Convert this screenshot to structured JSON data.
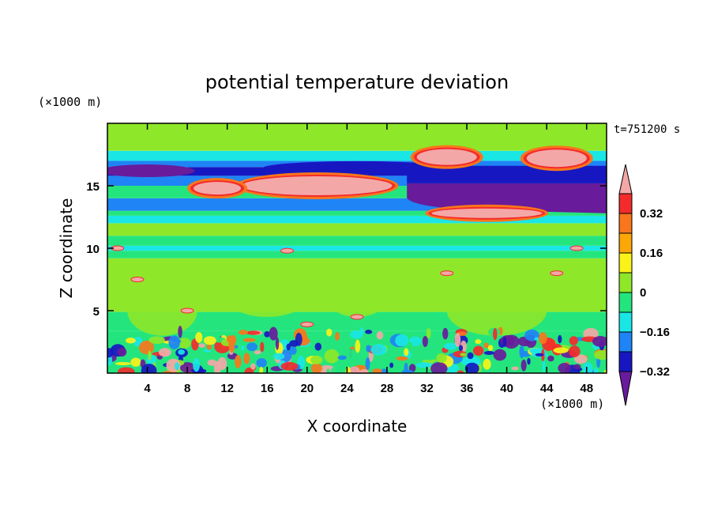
{
  "chart_data": {
    "type": "heatmap",
    "title": "potential temperature deviation",
    "xlabel": "X coordinate",
    "ylabel": "Z coordinate",
    "x_unit": "(×1000 m)",
    "y_unit": "(×1000 m)",
    "time_label": "t=751200 s",
    "xlim": [
      0,
      50
    ],
    "ylim": [
      0,
      20
    ],
    "x_ticks": [
      4,
      8,
      12,
      16,
      20,
      24,
      28,
      32,
      36,
      40,
      44,
      48
    ],
    "y_ticks": [
      5,
      10,
      15
    ],
    "colorbar": {
      "labels": [
        {
          "text": "0.32",
          "value": 0.32
        },
        {
          "text": "0.16",
          "value": 0.16
        },
        {
          "text": "0",
          "value": 0
        },
        {
          "text": "−0.16",
          "value": -0.16
        },
        {
          "text": "−0.32",
          "value": -0.32
        }
      ],
      "levels": [
        {
          "range": ">0.4",
          "color": "#f4a7a7"
        },
        {
          "range": "0.32 to 0.4",
          "color": "#f42b2b"
        },
        {
          "range": "0.24 to 0.32",
          "color": "#f9761c"
        },
        {
          "range": "0.16 to 0.24",
          "color": "#fba707"
        },
        {
          "range": "0.08 to 0.16",
          "color": "#f9f31a"
        },
        {
          "range": "0 to 0.08",
          "color": "#8ee729"
        },
        {
          "range": "-0.08 to 0",
          "color": "#24e57d"
        },
        {
          "range": "-0.16 to -0.08",
          "color": "#1ae6e6"
        },
        {
          "range": "-0.24 to -0.16",
          "color": "#1f84f5"
        },
        {
          "range": "-0.32 to -0.24",
          "color": "#1717c2"
        },
        {
          "range": "<-0.32",
          "color": "#681b9b"
        }
      ]
    }
  }
}
